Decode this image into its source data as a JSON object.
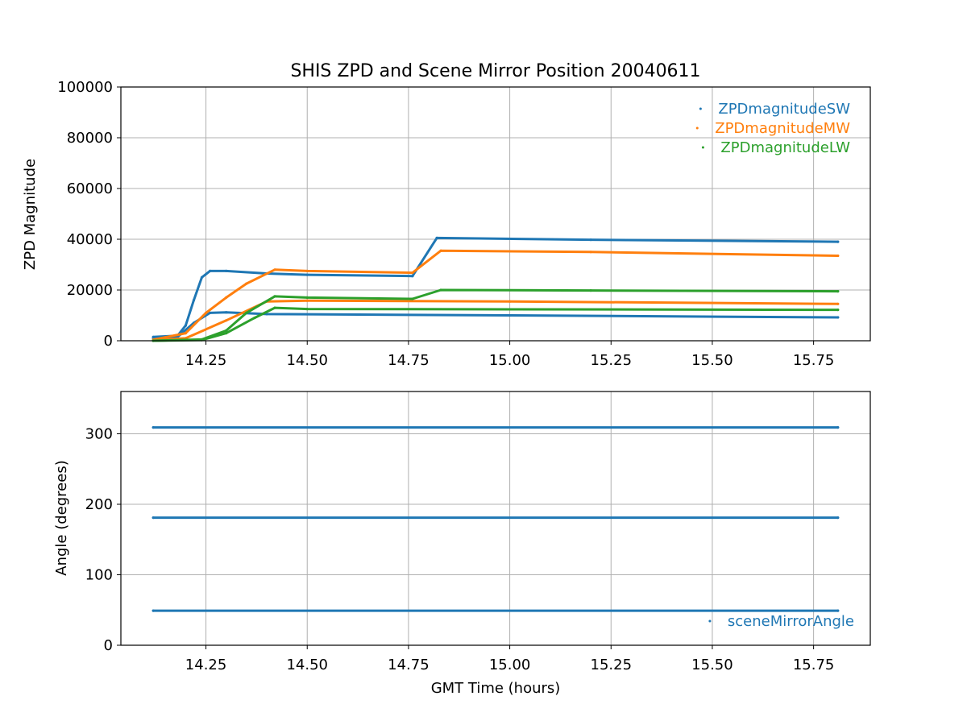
{
  "chart_data": [
    {
      "type": "scatter",
      "title": "SHIS ZPD and Scene Mirror Position 20040611",
      "xlabel": "",
      "ylabel": "ZPD Magnitude",
      "xlim": [
        14.04,
        15.89
      ],
      "ylim": [
        0,
        100000
      ],
      "xticks": [
        14.25,
        14.5,
        14.75,
        15.0,
        15.25,
        15.5,
        15.75
      ],
      "xtick_labels": [
        "14.25",
        "14.50",
        "14.75",
        "15.00",
        "15.25",
        "15.50",
        "15.75"
      ],
      "yticks": [
        0,
        20000,
        40000,
        60000,
        80000,
        100000
      ],
      "ytick_labels": [
        "0",
        "20000",
        "40000",
        "60000",
        "80000",
        "100000"
      ],
      "grid": true,
      "legend_position": "top-right",
      "series": [
        {
          "name": "ZPDmagnitudeSW",
          "color": "#1f77b4",
          "traces": [
            {
              "x": [
                14.12,
                14.18,
                14.2,
                14.22,
                14.24,
                14.26,
                14.3,
                14.4,
                14.5,
                14.76,
                14.82,
                15.2,
                15.81
              ],
              "y": [
                1500,
                2000,
                6000,
                16000,
                25000,
                27500,
                27500,
                26500,
                26000,
                25500,
                40500,
                39800,
                39000
              ]
            },
            {
              "x": [
                14.12,
                14.18,
                14.22,
                14.26,
                14.3,
                14.4,
                15.0,
                15.81
              ],
              "y": [
                1000,
                1500,
                7000,
                11000,
                11200,
                10500,
                10000,
                9200
              ]
            }
          ]
        },
        {
          "name": "ZPDmagnitudeMW",
          "color": "#ff7f0e",
          "traces": [
            {
              "x": [
                14.12,
                14.2,
                14.25,
                14.3,
                14.35,
                14.42,
                14.5,
                14.76,
                14.83,
                15.2,
                15.81
              ],
              "y": [
                400,
                3000,
                11000,
                17000,
                22500,
                28000,
                27500,
                26800,
                35500,
                35000,
                33500
              ]
            },
            {
              "x": [
                14.12,
                14.2,
                14.3,
                14.4,
                14.5,
                15.0,
                15.81
              ],
              "y": [
                200,
                1000,
                8000,
                15500,
                15800,
                15500,
                14500
              ]
            }
          ]
        },
        {
          "name": "ZPDmagnitudeLW",
          "color": "#2ca02c",
          "traces": [
            {
              "x": [
                14.12,
                14.24,
                14.3,
                14.35,
                14.42,
                14.5,
                14.76,
                14.83,
                15.2,
                15.81
              ],
              "y": [
                0,
                500,
                4000,
                11000,
                17500,
                17000,
                16500,
                20000,
                19800,
                19500
              ]
            },
            {
              "x": [
                14.12,
                14.24,
                14.3,
                14.37,
                14.42,
                14.5,
                15.81
              ],
              "y": [
                0,
                300,
                3000,
                9000,
                13000,
                12500,
                12200
              ]
            }
          ]
        }
      ]
    },
    {
      "type": "scatter",
      "title": "",
      "xlabel": "GMT Time (hours)",
      "ylabel": "Angle (degrees)",
      "xlim": [
        14.04,
        15.89
      ],
      "ylim": [
        0,
        360
      ],
      "xticks": [
        14.25,
        14.5,
        14.75,
        15.0,
        15.25,
        15.5,
        15.75
      ],
      "xtick_labels": [
        "14.25",
        "14.50",
        "14.75",
        "15.00",
        "15.25",
        "15.50",
        "15.75"
      ],
      "yticks": [
        0,
        100,
        200,
        300
      ],
      "ytick_labels": [
        "0",
        "100",
        "200",
        "300"
      ],
      "grid": true,
      "legend_position": "bottom-right",
      "series": [
        {
          "name": "sceneMirrorAngle",
          "color": "#1f77b4",
          "traces": [
            {
              "x": [
                14.12,
                15.81
              ],
              "y": [
                309,
                309
              ]
            },
            {
              "x": [
                14.12,
                15.81
              ],
              "y": [
                181,
                181
              ]
            },
            {
              "x": [
                14.12,
                15.81
              ],
              "y": [
                49,
                49
              ]
            }
          ]
        }
      ]
    }
  ]
}
